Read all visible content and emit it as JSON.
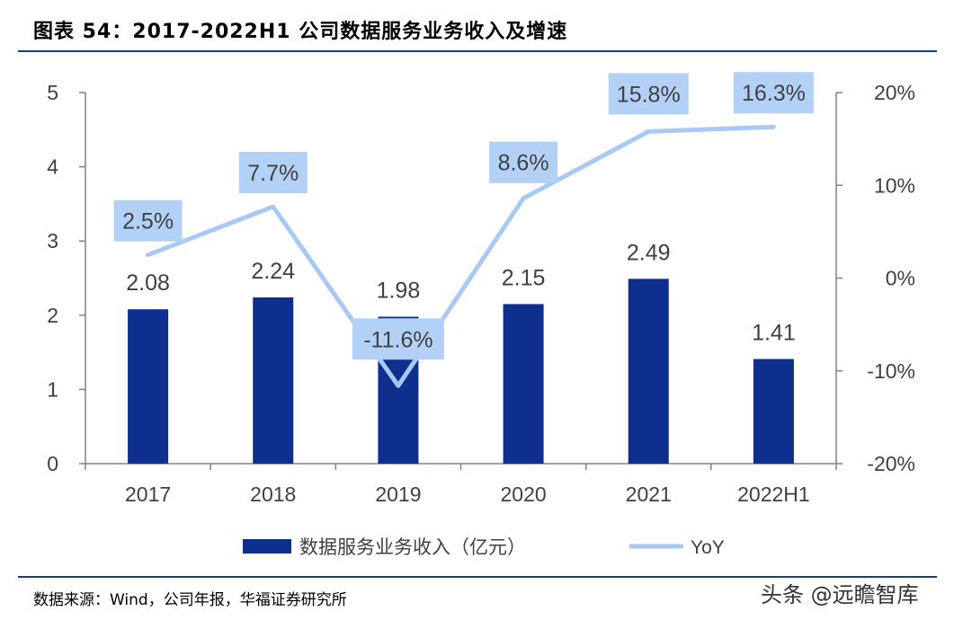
{
  "header": {
    "title": "图表 54：2017-2022H1 公司数据服务业务收入及增速"
  },
  "footer": {
    "source": "数据来源：Wind，公司年报，华福证券研究所",
    "watermark": "头条 @远瞻智库"
  },
  "colors": {
    "bar": "#0e2f8e",
    "line": "#a9c9f5",
    "label_box": "#b3d1f7",
    "axis": "#808080",
    "rule": "#1f3c88"
  },
  "chart_data": {
    "type": "bar+line",
    "categories": [
      "2017",
      "2018",
      "2019",
      "2020",
      "2021",
      "2022H1"
    ],
    "series": [
      {
        "name": "数据服务业务收入（亿元）",
        "type": "bar",
        "axis": "left",
        "values": [
          2.08,
          2.24,
          1.98,
          2.15,
          2.49,
          1.41
        ]
      },
      {
        "name": "YoY",
        "type": "line",
        "axis": "right",
        "values": [
          2.5,
          7.7,
          -11.6,
          8.6,
          15.8,
          16.3
        ]
      }
    ],
    "bar_labels": [
      "2.08",
      "2.24",
      "1.98",
      "2.15",
      "2.49",
      "1.41"
    ],
    "line_labels": [
      "2.5%",
      "7.7%",
      "-11.6%",
      "8.6%",
      "15.8%",
      "16.3%"
    ],
    "y_left": {
      "ticks": [
        "0",
        "1",
        "2",
        "3",
        "4",
        "5"
      ],
      "min": 0,
      "max": 5
    },
    "y_right": {
      "ticks": [
        "-20%",
        "-10%",
        "0%",
        "10%",
        "20%"
      ],
      "min": -20,
      "max": 20
    },
    "legend": {
      "placement": "bottom"
    },
    "grid": false
  }
}
